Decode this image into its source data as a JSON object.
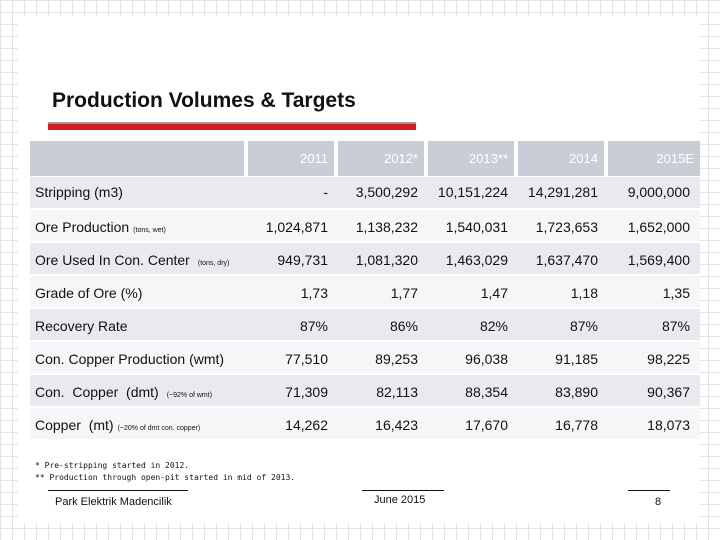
{
  "title": "Production Volumes & Targets",
  "table": {
    "headers": [
      "2011",
      "2012*",
      "2013**",
      "2014",
      "2015E"
    ],
    "rows": [
      {
        "label": "Stripping (m3)",
        "note": "",
        "values": [
          "-",
          "3,500,292",
          "10,151,224",
          "14,291,281",
          "9,000,000"
        ]
      },
      {
        "label": "Ore Production",
        "note": "(tons, wet)",
        "values": [
          "1,024,871",
          "1,138,232",
          "1,540,031",
          "1,723,653",
          "1,652,000"
        ]
      },
      {
        "label": "Ore Used In Con. Center",
        "note": "(tons, dry)",
        "values": [
          "949,731",
          "1,081,320",
          "1,463,029",
          "1,637,470",
          "1,569,400"
        ]
      },
      {
        "label": "Grade of Ore (%)",
        "note": "",
        "values": [
          "1,73",
          "1,77",
          "1,47",
          "1,18",
          "1,35"
        ]
      },
      {
        "label": "Recovery Rate",
        "note": "",
        "values": [
          "87%",
          "86%",
          "82%",
          "87%",
          "87%"
        ]
      },
      {
        "label": "Con. Copper Production (wmt)",
        "note": "",
        "values": [
          "77,510",
          "89,253",
          "96,038",
          "91,185",
          "98,225"
        ]
      },
      {
        "label": "Con.  Copper  (dmt)",
        "note": "(~92% of wmt)",
        "values": [
          "71,309",
          "82,113",
          "88,354",
          "83,890",
          "90,367"
        ]
      },
      {
        "label": "Copper  (mt)",
        "note": "(~20% of dmt con. copper)",
        "values": [
          "14,262",
          "16,423",
          "17,670",
          "16,778",
          "18,073"
        ]
      }
    ]
  },
  "footnotes": [
    "* Pre-stripping started in 2012.",
    "** Production through open-pit started in mid of 2013."
  ],
  "footer": {
    "company": "Park Elektrik Madencilik",
    "date": "June 2015",
    "page": "8"
  },
  "colors": {
    "accent": "#d71920",
    "header_bg": "#c8cdd6",
    "band_dark": "#e8eaef",
    "band_light": "#f6f6f8"
  }
}
